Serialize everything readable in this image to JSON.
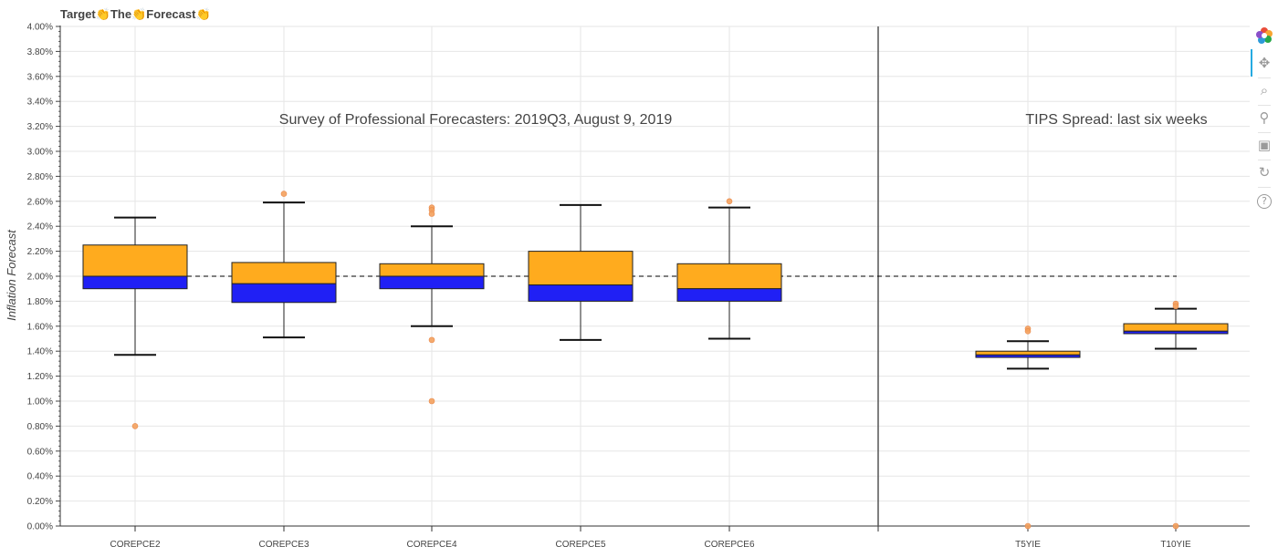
{
  "title": "Target👏The👏Forecast👏",
  "chart_data": {
    "type": "box",
    "ylabel": "Inflation Forecast",
    "xlabel": "",
    "ylim": [
      0,
      4.0
    ],
    "y_tick_step": 0.2,
    "y_tick_format": "percent_2dp",
    "grid": true,
    "target_line": 2.0,
    "annotations": [
      "Survey of Professional Forecasters: 2019Q3, August 9, 2019",
      "TIPS Spread: last six weeks"
    ],
    "categories": [
      "COREPCE2",
      "COREPCE3",
      "COREPCE4",
      "COREPCE5",
      "COREPCE6",
      "",
      "T5YIE",
      "T10YIE"
    ],
    "boxes": [
      {
        "name": "COREPCE2",
        "whisker_low": 1.37,
        "q1": 1.9,
        "median": 2.0,
        "q3": 2.25,
        "whisker_high": 2.47,
        "outliers": [
          0.8
        ]
      },
      {
        "name": "COREPCE3",
        "whisker_low": 1.51,
        "q1": 1.79,
        "median": 1.94,
        "q3": 2.11,
        "whisker_high": 2.59,
        "outliers": [
          2.66
        ]
      },
      {
        "name": "COREPCE4",
        "whisker_low": 1.6,
        "q1": 1.9,
        "median": 2.0,
        "q3": 2.1,
        "whisker_high": 2.4,
        "outliers": [
          2.55,
          2.53,
          2.5,
          1.49,
          1.0
        ]
      },
      {
        "name": "COREPCE5",
        "whisker_low": 1.49,
        "q1": 1.8,
        "median": 1.93,
        "q3": 2.2,
        "whisker_high": 2.57,
        "outliers": []
      },
      {
        "name": "COREPCE6",
        "whisker_low": 1.5,
        "q1": 1.8,
        "median": 1.9,
        "q3": 2.1,
        "whisker_high": 2.55,
        "outliers": [
          2.6
        ]
      },
      {
        "name": "T5YIE",
        "whisker_low": 1.26,
        "q1": 1.35,
        "median": 1.37,
        "q3": 1.4,
        "whisker_high": 1.48,
        "outliers": [
          1.58,
          1.56,
          0.0
        ]
      },
      {
        "name": "T10YIE",
        "whisker_low": 1.42,
        "q1": 1.54,
        "median": 1.56,
        "q3": 1.62,
        "whisker_high": 1.74,
        "outliers": [
          1.78,
          1.76,
          0.0
        ]
      }
    ],
    "colors": {
      "upper_box": "#ffab1e",
      "lower_box": "#2020f5",
      "outlier": "#f4a15d",
      "divider": "#555555",
      "grid": "#e6e6e6"
    }
  },
  "toolbar": {
    "tools": [
      "bokeh-logo-icon",
      "pan-icon",
      "box-zoom-icon",
      "wheel-zoom-icon",
      "save-icon",
      "reset-icon",
      "help-icon"
    ]
  }
}
